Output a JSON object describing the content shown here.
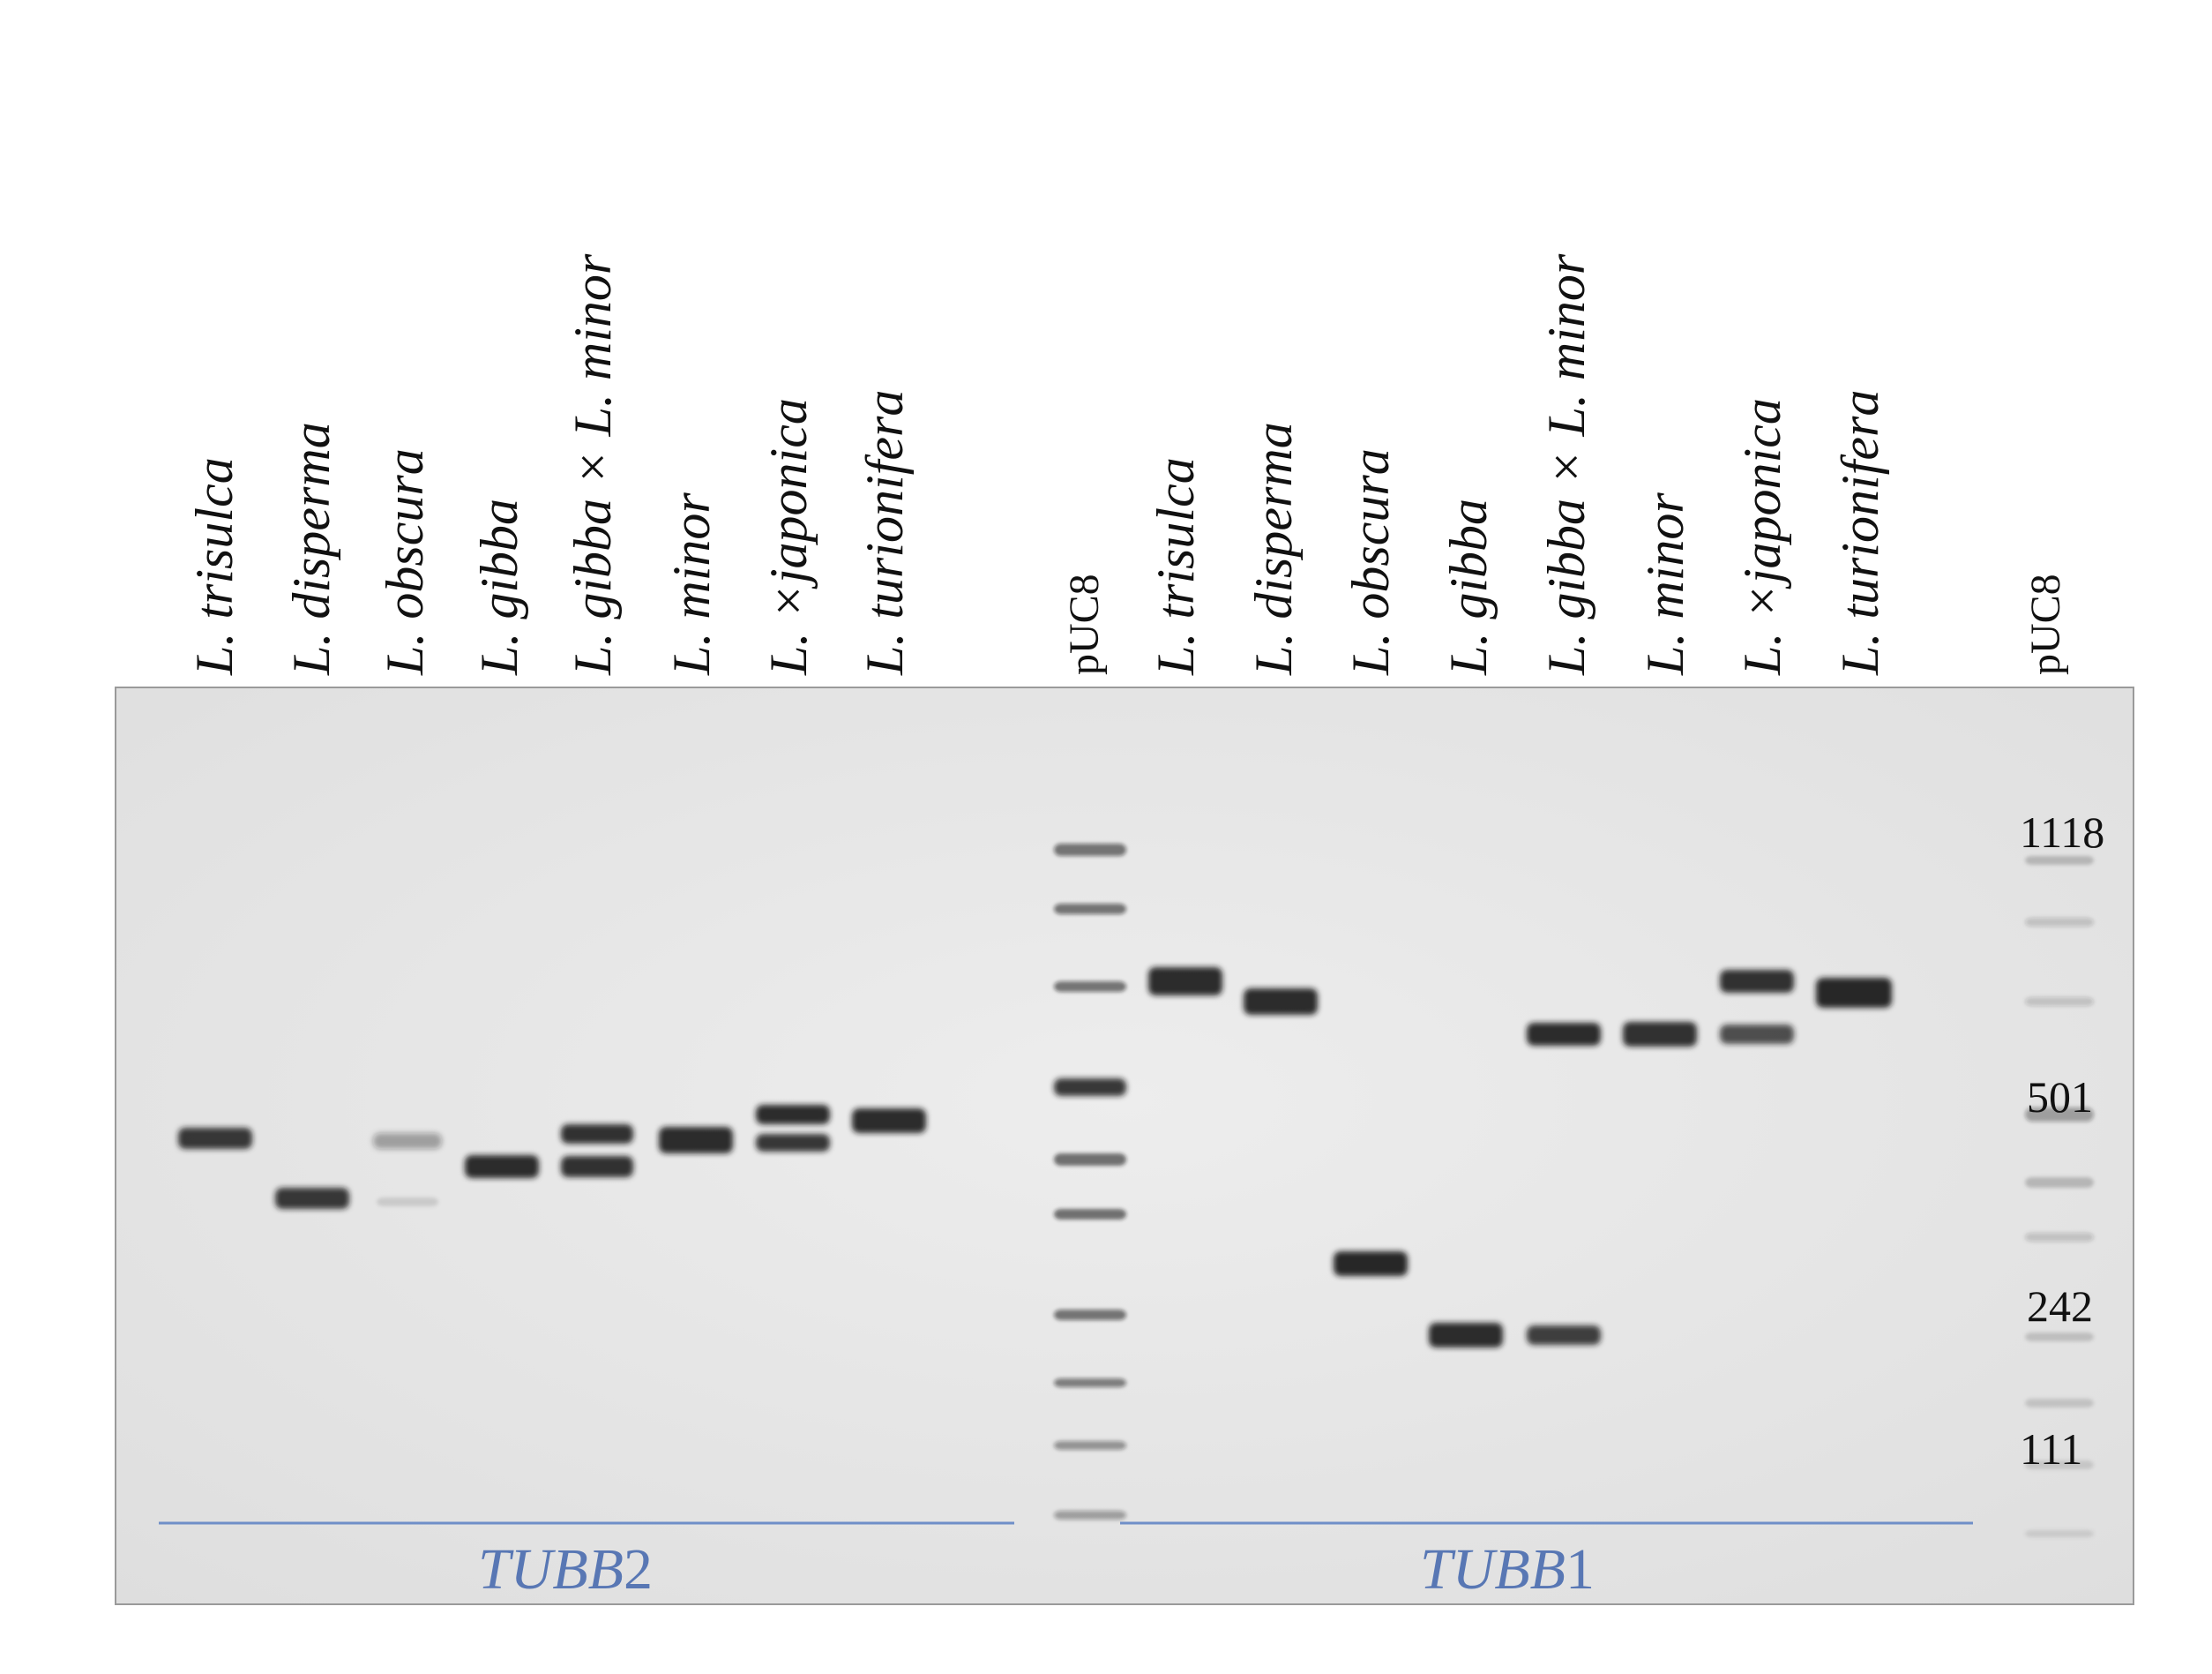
{
  "lanes": [
    {
      "label": "L. trisulca",
      "type": "sample"
    },
    {
      "label": "L. disperma",
      "type": "sample"
    },
    {
      "label": "L. obscura",
      "type": "sample"
    },
    {
      "label": "L. gibba",
      "type": "sample"
    },
    {
      "label": "L. gibba × L. minor",
      "type": "sample"
    },
    {
      "label": "L. minor",
      "type": "sample"
    },
    {
      "label": "L. ×japonica",
      "type": "sample"
    },
    {
      "label": "L. turionifera",
      "type": "sample"
    },
    {
      "label": "pUC8",
      "type": "marker"
    },
    {
      "label": "L. trisulca",
      "type": "sample"
    },
    {
      "label": "L. disperma",
      "type": "sample"
    },
    {
      "label": "L. obscura",
      "type": "sample"
    },
    {
      "label": "L. gibba",
      "type": "sample"
    },
    {
      "label": "L. gibba × L. minor",
      "type": "sample"
    },
    {
      "label": "L. minor",
      "type": "sample"
    },
    {
      "label": "L. ×japonica",
      "type": "sample"
    },
    {
      "label": "L. turionifera",
      "type": "sample"
    },
    {
      "label": "pUC8",
      "type": "marker"
    }
  ],
  "size_labels": [
    "1118",
    "501",
    "242",
    "111"
  ],
  "gene_groups": [
    {
      "name_italic": "TUBB",
      "name_suffix": "2"
    },
    {
      "name_italic": "TUBB",
      "name_suffix": "1"
    }
  ],
  "colors": {
    "gel_background": "#e9e9e9",
    "band": "#1a1a1a",
    "gene_line": "#6f8fc8",
    "gene_text": "#5877b4"
  }
}
